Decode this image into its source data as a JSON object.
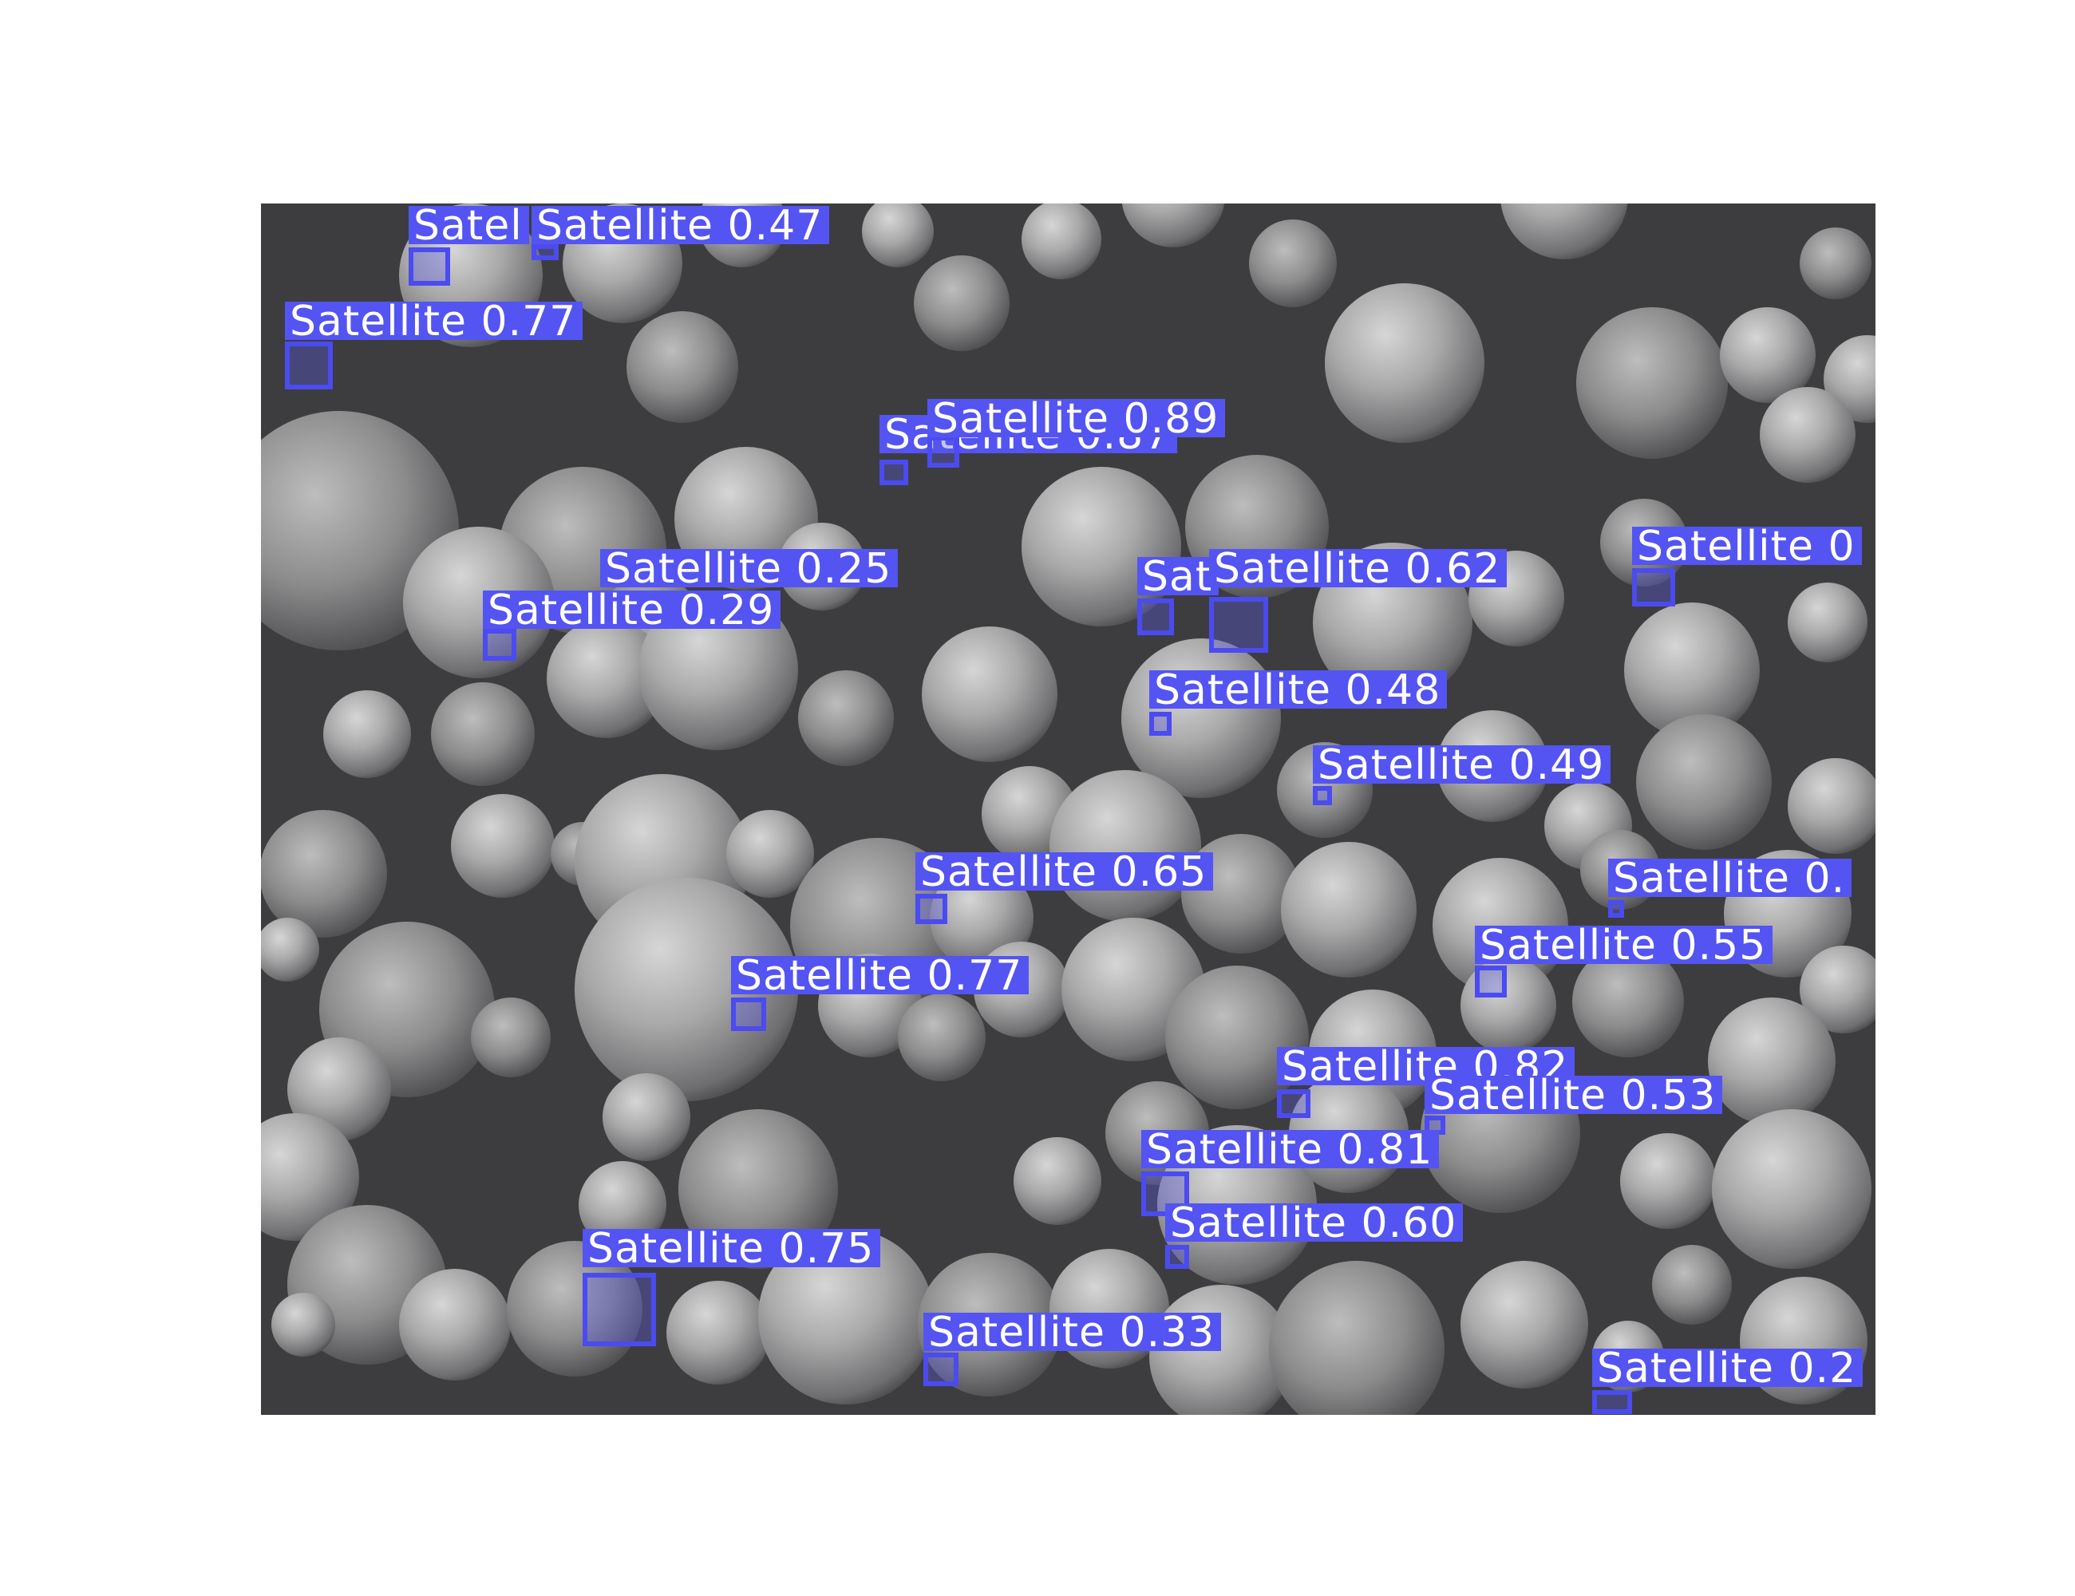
{
  "figure": {
    "colors": {
      "background": "#ffffff",
      "sem_background": "#3d3d40",
      "box_stroke": "#4b4bf0",
      "box_fill": "rgba(90,90,230,0.35)",
      "label_bg": "#5454f2",
      "label_text": "#ffffff"
    }
  },
  "detections": [
    {
      "label": "Satel",
      "name": "detection-label"
    },
    {
      "label": "Satellite 0.47",
      "name": "detection-label"
    },
    {
      "label": "Satellite 0.77",
      "name": "detection-label"
    },
    {
      "label": "Satellite 0.87",
      "name": "detection-label"
    },
    {
      "label": "Satellite 0.89",
      "name": "detection-label"
    },
    {
      "label": "Satellite 0.25",
      "name": "detection-label"
    },
    {
      "label": "Satellite 0.29",
      "name": "detection-label"
    },
    {
      "label": "Sat",
      "name": "detection-label"
    },
    {
      "label": "Satellite 0.62",
      "name": "detection-label"
    },
    {
      "label": "Satellite 0",
      "name": "detection-label"
    },
    {
      "label": "Satellite 0.48",
      "name": "detection-label"
    },
    {
      "label": "Satellite 0.49",
      "name": "detection-label"
    },
    {
      "label": "Satellite 0.65",
      "name": "detection-label"
    },
    {
      "label": "Satellite 0.",
      "name": "detection-label"
    },
    {
      "label": "Satellite 0.55",
      "name": "detection-label"
    },
    {
      "label": "Satellite 0.77",
      "name": "detection-label"
    },
    {
      "label": "Satellite 0.82",
      "name": "detection-label"
    },
    {
      "label": "Satellite 0.53",
      "name": "detection-label"
    },
    {
      "label": "Satellite 0.81",
      "name": "detection-label"
    },
    {
      "label": "Satellite 0.60",
      "name": "detection-label"
    },
    {
      "label": "Satellite 0.75",
      "name": "detection-label"
    },
    {
      "label": "Satellite 0.33",
      "name": "detection-label"
    },
    {
      "label": "Satellite 0.2",
      "name": "detection-label"
    }
  ]
}
